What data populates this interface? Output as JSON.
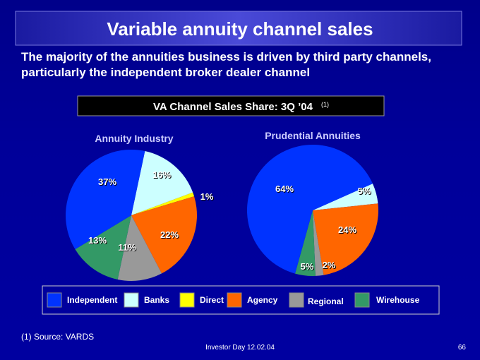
{
  "header": {
    "title": "Variable annuity channel sales",
    "subtitle": "The majority of the annuities business is driven by third party channels, particularly the independent broker dealer channel"
  },
  "banner": {
    "text": "VA Channel Sales Share:  3Q ’04",
    "note": "(1)"
  },
  "chart_data": [
    {
      "type": "pie",
      "title": "Annuity Industry",
      "categories": [
        "Independent",
        "Banks",
        "Direct",
        "Agency",
        "Regional",
        "Wirehouse"
      ],
      "values": [
        37,
        16,
        1,
        22,
        11,
        13
      ],
      "value_labels": [
        "37%",
        "16%",
        "1%",
        "22%",
        "11%",
        "13%"
      ],
      "colors": [
        "#0033ff",
        "#ccffff",
        "#ffff00",
        "#ff6600",
        "#999999",
        "#339966"
      ]
    },
    {
      "type": "pie",
      "title": "Prudential Annuities",
      "categories": [
        "Independent",
        "Banks",
        "Direct",
        "Agency",
        "Regional",
        "Wirehouse"
      ],
      "values": [
        64,
        5,
        null,
        24,
        2,
        5
      ],
      "value_labels": [
        "64%",
        "5%",
        null,
        "24%",
        "2%",
        "5%"
      ],
      "colors": [
        "#0033ff",
        "#ccffff",
        "#ffff00",
        "#ff6600",
        "#999999",
        "#339966"
      ]
    }
  ],
  "footer": {
    "note": "(1) Source: VARDS",
    "event": "Investor Day 12.02.04",
    "page": "66"
  }
}
